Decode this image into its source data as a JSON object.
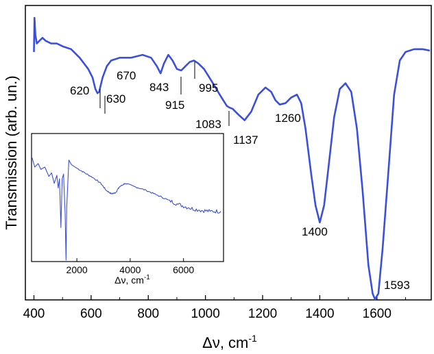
{
  "chart_data": [
    {
      "type": "line",
      "xlabel": "Δν, cm",
      "xlabel_superscript": "-1",
      "ylabel": "Transmission (arb. un.)",
      "xlim": [
        370,
        1790
      ],
      "ylim": [
        0,
        1
      ],
      "x_ticks": [
        400,
        600,
        800,
        1000,
        1200,
        1400,
        1600
      ],
      "y_ticks_shown": false,
      "color": "#3a4fe0",
      "series": [
        {
          "points": [
            [
              400,
              0.87
            ],
            [
              402,
              0.99
            ],
            [
              405,
              0.93
            ],
            [
              410,
              0.9
            ],
            [
              420,
              0.91
            ],
            [
              430,
              0.92
            ],
            [
              440,
              0.91
            ],
            [
              460,
              0.9
            ],
            [
              480,
              0.9
            ],
            [
              500,
              0.89
            ],
            [
              530,
              0.88
            ],
            [
              560,
              0.85
            ],
            [
              590,
              0.81
            ],
            [
              605,
              0.78
            ],
            [
              615,
              0.74
            ],
            [
              622,
              0.725
            ],
            [
              628,
              0.73
            ],
            [
              640,
              0.78
            ],
            [
              655,
              0.82
            ],
            [
              670,
              0.84
            ],
            [
              700,
              0.85
            ],
            [
              740,
              0.85
            ],
            [
              780,
              0.86
            ],
            [
              810,
              0.85
            ],
            [
              830,
              0.82
            ],
            [
              843,
              0.795
            ],
            [
              855,
              0.83
            ],
            [
              870,
              0.86
            ],
            [
              885,
              0.84
            ],
            [
              900,
              0.81
            ],
            [
              915,
              0.805
            ],
            [
              930,
              0.82
            ],
            [
              945,
              0.835
            ],
            [
              960,
              0.84
            ],
            [
              975,
              0.83
            ],
            [
              995,
              0.81
            ],
            [
              1020,
              0.77
            ],
            [
              1050,
              0.72
            ],
            [
              1075,
              0.68
            ],
            [
              1083,
              0.675
            ],
            [
              1095,
              0.67
            ],
            [
              1115,
              0.65
            ],
            [
              1137,
              0.63
            ],
            [
              1160,
              0.66
            ],
            [
              1185,
              0.72
            ],
            [
              1210,
              0.745
            ],
            [
              1230,
              0.73
            ],
            [
              1245,
              0.7
            ],
            [
              1260,
              0.685
            ],
            [
              1280,
              0.69
            ],
            [
              1300,
              0.71
            ],
            [
              1320,
              0.72
            ],
            [
              1335,
              0.69
            ],
            [
              1350,
              0.6
            ],
            [
              1370,
              0.44
            ],
            [
              1385,
              0.33
            ],
            [
              1400,
              0.27
            ],
            [
              1415,
              0.33
            ],
            [
              1430,
              0.46
            ],
            [
              1450,
              0.64
            ],
            [
              1470,
              0.74
            ],
            [
              1490,
              0.76
            ],
            [
              1510,
              0.73
            ],
            [
              1530,
              0.6
            ],
            [
              1550,
              0.38
            ],
            [
              1570,
              0.12
            ],
            [
              1585,
              0.02
            ],
            [
              1593,
              0.0
            ],
            [
              1605,
              0.02
            ],
            [
              1620,
              0.18
            ],
            [
              1640,
              0.45
            ],
            [
              1660,
              0.72
            ],
            [
              1680,
              0.84
            ],
            [
              1700,
              0.87
            ],
            [
              1730,
              0.88
            ],
            [
              1760,
              0.88
            ],
            [
              1785,
              0.875
            ]
          ]
        }
      ],
      "annotations": [
        {
          "label": "620",
          "x": 620
        },
        {
          "label": "630",
          "x": 630
        },
        {
          "label": "670",
          "x": 670
        },
        {
          "label": "843",
          "x": 843
        },
        {
          "label": "915",
          "x": 915
        },
        {
          "label": "995",
          "x": 995
        },
        {
          "label": "1083",
          "x": 1083
        },
        {
          "label": "1137",
          "x": 1137
        },
        {
          "label": "1260",
          "x": 1260
        },
        {
          "label": "1400",
          "x": 1400
        },
        {
          "label": "1593",
          "x": 1593
        }
      ]
    },
    {
      "type": "line",
      "inset": true,
      "xlabel": "Δν, cm",
      "xlabel_superscript": "-1",
      "xlim": [
        300,
        7500
      ],
      "ylim": [
        0,
        1
      ],
      "x_ticks": [
        2000,
        4000,
        6000
      ],
      "color": "#3a4fe0",
      "series": [
        {
          "points": [
            [
              320,
              0.88
            ],
            [
              420,
              0.8
            ],
            [
              550,
              0.83
            ],
            [
              650,
              0.78
            ],
            [
              800,
              0.8
            ],
            [
              950,
              0.72
            ],
            [
              1050,
              0.75
            ],
            [
              1150,
              0.66
            ],
            [
              1250,
              0.73
            ],
            [
              1300,
              0.62
            ],
            [
              1350,
              0.7
            ],
            [
              1400,
              0.28
            ],
            [
              1450,
              0.7
            ],
            [
              1500,
              0.74
            ],
            [
              1560,
              0.4
            ],
            [
              1593,
              0.0
            ],
            [
              1620,
              0.45
            ],
            [
              1700,
              0.86
            ],
            [
              1800,
              0.82
            ],
            [
              2000,
              0.79
            ],
            [
              2300,
              0.75
            ],
            [
              2600,
              0.71
            ],
            [
              2900,
              0.66
            ],
            [
              3100,
              0.6
            ],
            [
              3300,
              0.57
            ],
            [
              3450,
              0.58
            ],
            [
              3600,
              0.63
            ],
            [
              3800,
              0.66
            ],
            [
              4200,
              0.63
            ],
            [
              4600,
              0.6
            ],
            [
              5000,
              0.56
            ],
            [
              5400,
              0.52
            ],
            [
              5800,
              0.48
            ],
            [
              6200,
              0.45
            ],
            [
              6600,
              0.43
            ],
            [
              7000,
              0.42
            ],
            [
              7400,
              0.42
            ]
          ]
        }
      ]
    }
  ]
}
